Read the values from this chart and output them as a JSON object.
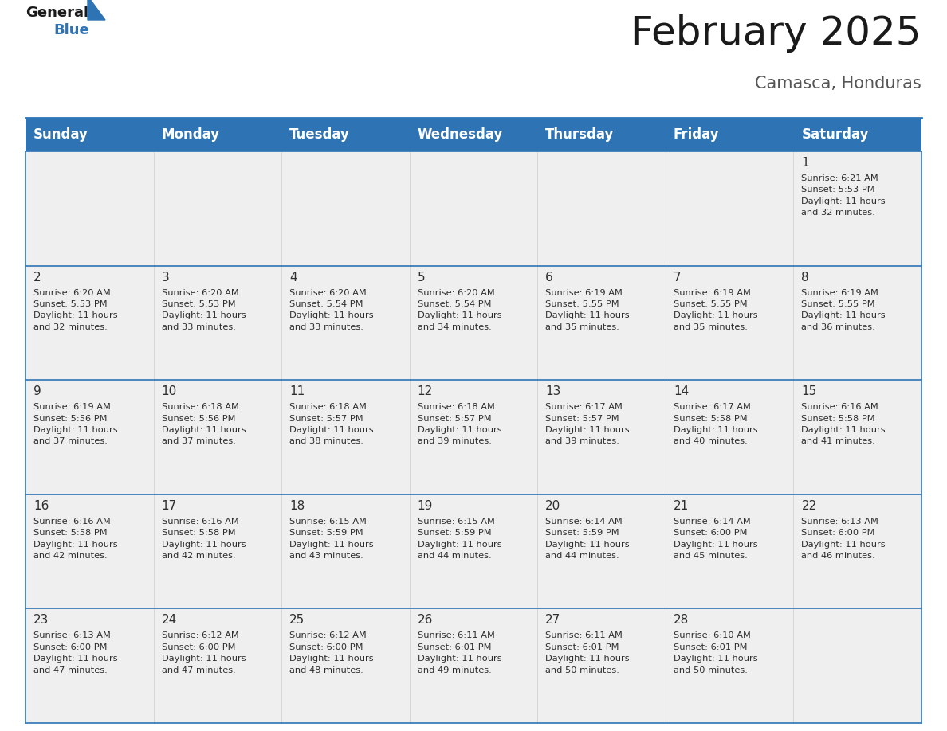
{
  "title": "February 2025",
  "subtitle": "Camasca, Honduras",
  "header_bg": "#2E74B5",
  "header_text_color": "#FFFFFF",
  "days_of_week": [
    "Sunday",
    "Monday",
    "Tuesday",
    "Wednesday",
    "Thursday",
    "Friday",
    "Saturday"
  ],
  "title_fontsize": 36,
  "subtitle_fontsize": 15,
  "cell_text_fontsize": 8.2,
  "day_number_fontsize": 11,
  "header_fontsize": 12,
  "background_color": "#FFFFFF",
  "cell_bg_color": "#EFEFEF",
  "separator_color": "#2E74B5",
  "calendar_data": [
    [
      {
        "day": "",
        "info": ""
      },
      {
        "day": "",
        "info": ""
      },
      {
        "day": "",
        "info": ""
      },
      {
        "day": "",
        "info": ""
      },
      {
        "day": "",
        "info": ""
      },
      {
        "day": "",
        "info": ""
      },
      {
        "day": "1",
        "info": "Sunrise: 6:21 AM\nSunset: 5:53 PM\nDaylight: 11 hours\nand 32 minutes."
      }
    ],
    [
      {
        "day": "2",
        "info": "Sunrise: 6:20 AM\nSunset: 5:53 PM\nDaylight: 11 hours\nand 32 minutes."
      },
      {
        "day": "3",
        "info": "Sunrise: 6:20 AM\nSunset: 5:53 PM\nDaylight: 11 hours\nand 33 minutes."
      },
      {
        "day": "4",
        "info": "Sunrise: 6:20 AM\nSunset: 5:54 PM\nDaylight: 11 hours\nand 33 minutes."
      },
      {
        "day": "5",
        "info": "Sunrise: 6:20 AM\nSunset: 5:54 PM\nDaylight: 11 hours\nand 34 minutes."
      },
      {
        "day": "6",
        "info": "Sunrise: 6:19 AM\nSunset: 5:55 PM\nDaylight: 11 hours\nand 35 minutes."
      },
      {
        "day": "7",
        "info": "Sunrise: 6:19 AM\nSunset: 5:55 PM\nDaylight: 11 hours\nand 35 minutes."
      },
      {
        "day": "8",
        "info": "Sunrise: 6:19 AM\nSunset: 5:55 PM\nDaylight: 11 hours\nand 36 minutes."
      }
    ],
    [
      {
        "day": "9",
        "info": "Sunrise: 6:19 AM\nSunset: 5:56 PM\nDaylight: 11 hours\nand 37 minutes."
      },
      {
        "day": "10",
        "info": "Sunrise: 6:18 AM\nSunset: 5:56 PM\nDaylight: 11 hours\nand 37 minutes."
      },
      {
        "day": "11",
        "info": "Sunrise: 6:18 AM\nSunset: 5:57 PM\nDaylight: 11 hours\nand 38 minutes."
      },
      {
        "day": "12",
        "info": "Sunrise: 6:18 AM\nSunset: 5:57 PM\nDaylight: 11 hours\nand 39 minutes."
      },
      {
        "day": "13",
        "info": "Sunrise: 6:17 AM\nSunset: 5:57 PM\nDaylight: 11 hours\nand 39 minutes."
      },
      {
        "day": "14",
        "info": "Sunrise: 6:17 AM\nSunset: 5:58 PM\nDaylight: 11 hours\nand 40 minutes."
      },
      {
        "day": "15",
        "info": "Sunrise: 6:16 AM\nSunset: 5:58 PM\nDaylight: 11 hours\nand 41 minutes."
      }
    ],
    [
      {
        "day": "16",
        "info": "Sunrise: 6:16 AM\nSunset: 5:58 PM\nDaylight: 11 hours\nand 42 minutes."
      },
      {
        "day": "17",
        "info": "Sunrise: 6:16 AM\nSunset: 5:58 PM\nDaylight: 11 hours\nand 42 minutes."
      },
      {
        "day": "18",
        "info": "Sunrise: 6:15 AM\nSunset: 5:59 PM\nDaylight: 11 hours\nand 43 minutes."
      },
      {
        "day": "19",
        "info": "Sunrise: 6:15 AM\nSunset: 5:59 PM\nDaylight: 11 hours\nand 44 minutes."
      },
      {
        "day": "20",
        "info": "Sunrise: 6:14 AM\nSunset: 5:59 PM\nDaylight: 11 hours\nand 44 minutes."
      },
      {
        "day": "21",
        "info": "Sunrise: 6:14 AM\nSunset: 6:00 PM\nDaylight: 11 hours\nand 45 minutes."
      },
      {
        "day": "22",
        "info": "Sunrise: 6:13 AM\nSunset: 6:00 PM\nDaylight: 11 hours\nand 46 minutes."
      }
    ],
    [
      {
        "day": "23",
        "info": "Sunrise: 6:13 AM\nSunset: 6:00 PM\nDaylight: 11 hours\nand 47 minutes."
      },
      {
        "day": "24",
        "info": "Sunrise: 6:12 AM\nSunset: 6:00 PM\nDaylight: 11 hours\nand 47 minutes."
      },
      {
        "day": "25",
        "info": "Sunrise: 6:12 AM\nSunset: 6:00 PM\nDaylight: 11 hours\nand 48 minutes."
      },
      {
        "day": "26",
        "info": "Sunrise: 6:11 AM\nSunset: 6:01 PM\nDaylight: 11 hours\nand 49 minutes."
      },
      {
        "day": "27",
        "info": "Sunrise: 6:11 AM\nSunset: 6:01 PM\nDaylight: 11 hours\nand 50 minutes."
      },
      {
        "day": "28",
        "info": "Sunrise: 6:10 AM\nSunset: 6:01 PM\nDaylight: 11 hours\nand 50 minutes."
      },
      {
        "day": "",
        "info": ""
      }
    ]
  ]
}
